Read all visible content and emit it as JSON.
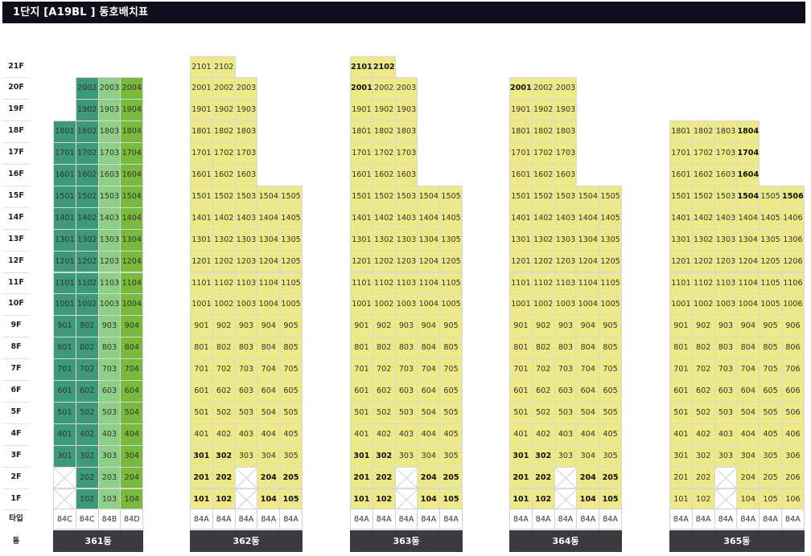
{
  "title": "1단지  [A19BL ] 동호배치표",
  "floors": [
    "21F",
    "20F",
    "19F",
    "18F",
    "17F",
    "16F",
    "15F",
    "14F",
    "13F",
    "12F",
    "11F",
    "10F",
    "9F",
    "8F",
    "7F",
    "6F",
    "5F",
    "4F",
    "3F",
    "2F",
    "1F"
  ],
  "type_row_label": "타입",
  "building_row_label": "동",
  "colors": {
    "title_bg": "#0e0e1c",
    "yellow": "#ece986",
    "teal": "#3c9a78",
    "light_green": "#8ecf86",
    "lime": "#79b93c",
    "building_bar": "#3c3a40",
    "empty_cross": "#c8c8c8"
  },
  "buildings": [
    {
      "name": "361동",
      "types": [
        "84C",
        "84C",
        "84B",
        "84D"
      ],
      "column_colors": [
        "teal",
        "teal",
        "light_green",
        "lime"
      ],
      "column_top_floor": [
        18,
        20,
        20,
        20
      ],
      "empty_units": [
        "201",
        "101"
      ],
      "bold_units": []
    },
    {
      "name": "362동",
      "types": [
        "84A",
        "84A",
        "84A",
        "84A",
        "84A"
      ],
      "column_colors": [
        "yellow",
        "yellow",
        "yellow",
        "yellow",
        "yellow"
      ],
      "column_top_floor": [
        21,
        21,
        20,
        15,
        15
      ],
      "empty_units": [
        "203",
        "103"
      ],
      "bold_units": [
        "301",
        "201",
        "101",
        "302",
        "202",
        "102",
        "204",
        "104",
        "205",
        "105"
      ]
    },
    {
      "name": "363동",
      "types": [
        "84A",
        "84A",
        "84A",
        "84A",
        "84A"
      ],
      "column_colors": [
        "yellow",
        "yellow",
        "yellow",
        "yellow",
        "yellow"
      ],
      "column_top_floor": [
        21,
        21,
        20,
        15,
        15
      ],
      "empty_units": [
        "203",
        "103"
      ],
      "bold_units": [
        "2101",
        "2102",
        "2001",
        "301",
        "201",
        "101",
        "302",
        "202",
        "102",
        "204",
        "104",
        "205",
        "105"
      ]
    },
    {
      "name": "364동",
      "types": [
        "84A",
        "84A",
        "84A",
        "84A",
        "84A"
      ],
      "column_colors": [
        "yellow",
        "yellow",
        "yellow",
        "yellow",
        "yellow"
      ],
      "column_top_floor": [
        20,
        20,
        20,
        15,
        15
      ],
      "empty_units": [
        "203",
        "103"
      ],
      "bold_units": [
        "2001",
        "301",
        "201",
        "101",
        "302",
        "202",
        "102",
        "204",
        "104",
        "205",
        "105"
      ]
    },
    {
      "name": "365동",
      "types": [
        "84A",
        "84A",
        "84A",
        "84A",
        "84A",
        "84A"
      ],
      "column_colors": [
        "yellow",
        "yellow",
        "yellow",
        "yellow",
        "yellow",
        "yellow"
      ],
      "column_top_floor": [
        18,
        18,
        18,
        18,
        15,
        15
      ],
      "empty_units": [
        "203",
        "103"
      ],
      "bold_units": [
        "1804",
        "1704",
        "1604",
        "1504",
        "1506"
      ]
    }
  ]
}
